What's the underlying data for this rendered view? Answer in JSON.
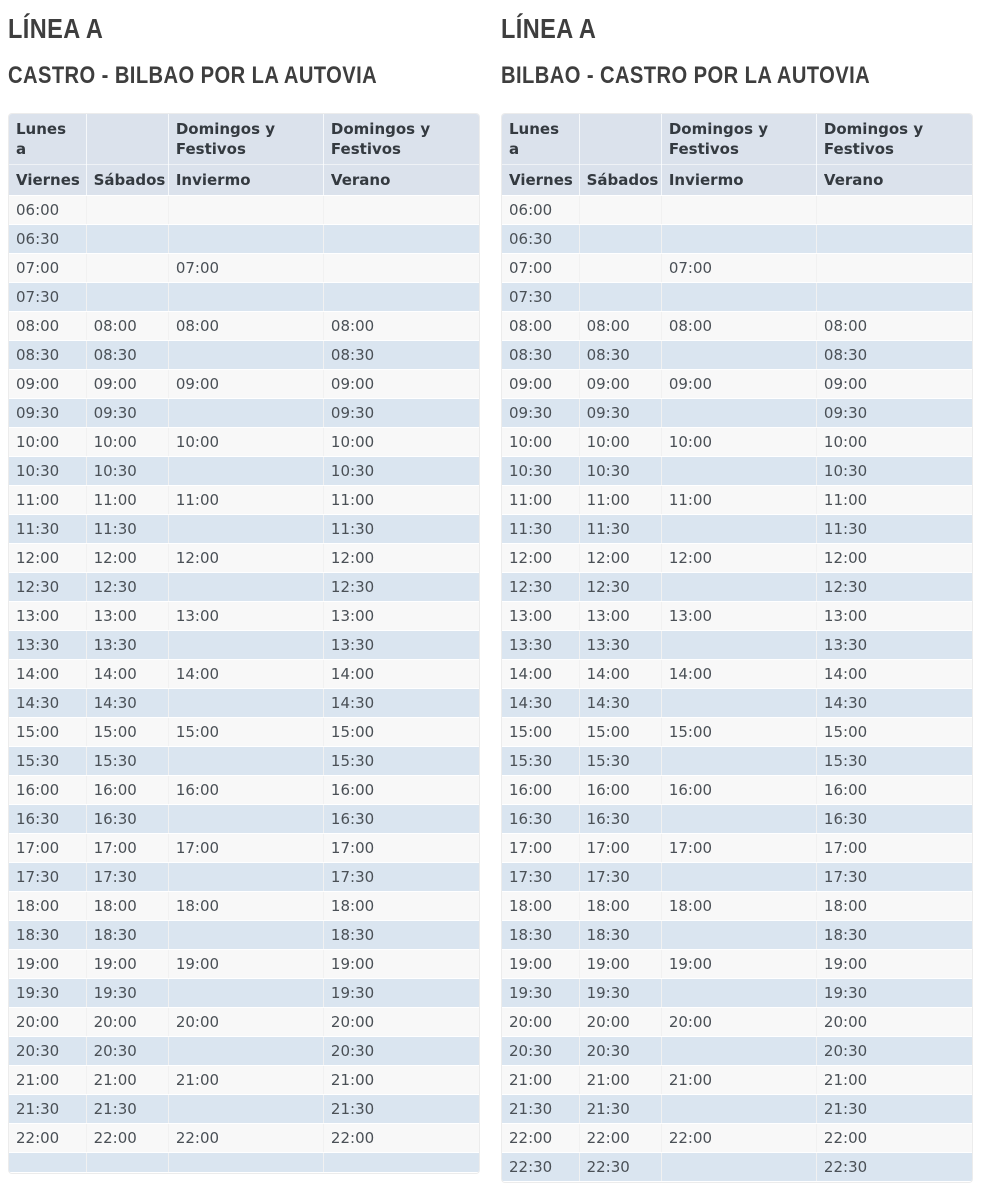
{
  "colors": {
    "header_bg": "#dbe2ec",
    "row_blue": "#dae5f0",
    "row_white": "#f8f8f8",
    "cell_text": "#4a5056",
    "header_text": "#343a40",
    "title_text": "#3e3e3e"
  },
  "tables": [
    {
      "line_title": "LÍNEA A",
      "route_title": "CASTRO - BILBAO POR LA AUTOVIA",
      "header": {
        "col1_top": "Lunes\na",
        "col1_bottom": "Viernes",
        "col2_top": "",
        "col2_bottom": "Sábados",
        "col3_top": "Domingos y\nFestivos",
        "col3_bottom": "Inviermo",
        "col4_top": "Domingos y\nFestivos",
        "col4_bottom": "Verano"
      },
      "rows": [
        [
          "06:00",
          "",
          "",
          ""
        ],
        [
          "06:30",
          "",
          "",
          ""
        ],
        [
          "07:00",
          "",
          "07:00",
          ""
        ],
        [
          "07:30",
          "",
          "",
          ""
        ],
        [
          "08:00",
          "08:00",
          "08:00",
          "08:00"
        ],
        [
          "08:30",
          "08:30",
          "",
          "08:30"
        ],
        [
          "09:00",
          "09:00",
          "09:00",
          "09:00"
        ],
        [
          "09:30",
          "09:30",
          "",
          "09:30"
        ],
        [
          "10:00",
          "10:00",
          "10:00",
          "10:00"
        ],
        [
          "10:30",
          "10:30",
          "",
          "10:30"
        ],
        [
          "11:00",
          "11:00",
          "11:00",
          "11:00"
        ],
        [
          "11:30",
          "11:30",
          "",
          "11:30"
        ],
        [
          "12:00",
          "12:00",
          "12:00",
          "12:00"
        ],
        [
          "12:30",
          "12:30",
          "",
          "12:30"
        ],
        [
          "13:00",
          "13:00",
          "13:00",
          "13:00"
        ],
        [
          "13:30",
          "13:30",
          "",
          "13:30"
        ],
        [
          "14:00",
          "14:00",
          "14:00",
          "14:00"
        ],
        [
          "14:30",
          "14:30",
          "",
          "14:30"
        ],
        [
          "15:00",
          "15:00",
          "15:00",
          "15:00"
        ],
        [
          "15:30",
          "15:30",
          "",
          "15:30"
        ],
        [
          "16:00",
          "16:00",
          "16:00",
          "16:00"
        ],
        [
          "16:30",
          "16:30",
          "",
          "16:30"
        ],
        [
          "17:00",
          "17:00",
          "17:00",
          "17:00"
        ],
        [
          "17:30",
          "17:30",
          "",
          "17:30"
        ],
        [
          "18:00",
          "18:00",
          "18:00",
          "18:00"
        ],
        [
          "18:30",
          "18:30",
          "",
          "18:30"
        ],
        [
          "19:00",
          "19:00",
          "19:00",
          "19:00"
        ],
        [
          "19:30",
          "19:30",
          "",
          "19:30"
        ],
        [
          "20:00",
          "20:00",
          "20:00",
          "20:00"
        ],
        [
          "20:30",
          "20:30",
          "",
          "20:30"
        ],
        [
          "21:00",
          "21:00",
          "21:00",
          "21:00"
        ],
        [
          "21:30",
          "21:30",
          "",
          "21:30"
        ],
        [
          "22:00",
          "22:00",
          "22:00",
          "22:00"
        ],
        [
          "",
          "",
          "",
          ""
        ]
      ]
    },
    {
      "line_title": "LÍNEA A",
      "route_title": "BILBAO - CASTRO POR LA AUTOVIA",
      "header": {
        "col1_top": "Lunes\na",
        "col1_bottom": "Viernes",
        "col2_top": "",
        "col2_bottom": "Sábados",
        "col3_top": "Domingos y\nFestivos",
        "col3_bottom": "Inviermo",
        "col4_top": "Domingos y\nFestivos",
        "col4_bottom": "Verano"
      },
      "rows": [
        [
          "06:00",
          "",
          "",
          ""
        ],
        [
          "06:30",
          "",
          "",
          ""
        ],
        [
          "07:00",
          "",
          "07:00",
          ""
        ],
        [
          "07:30",
          "",
          "",
          ""
        ],
        [
          "08:00",
          "08:00",
          "08:00",
          "08:00"
        ],
        [
          "08:30",
          "08:30",
          "",
          "08:30"
        ],
        [
          "09:00",
          "09:00",
          "09:00",
          "09:00"
        ],
        [
          "09:30",
          "09:30",
          "",
          "09:30"
        ],
        [
          "10:00",
          "10:00",
          "10:00",
          "10:00"
        ],
        [
          "10:30",
          "10:30",
          "",
          "10:30"
        ],
        [
          "11:00",
          "11:00",
          "11:00",
          "11:00"
        ],
        [
          "11:30",
          "11:30",
          "",
          "11:30"
        ],
        [
          "12:00",
          "12:00",
          "12:00",
          "12:00"
        ],
        [
          "12:30",
          "12:30",
          "",
          "12:30"
        ],
        [
          "13:00",
          "13:00",
          "13:00",
          "13:00"
        ],
        [
          "13:30",
          "13:30",
          "",
          "13:30"
        ],
        [
          "14:00",
          "14:00",
          "14:00",
          "14:00"
        ],
        [
          "14:30",
          "14:30",
          "",
          "14:30"
        ],
        [
          "15:00",
          "15:00",
          "15:00",
          "15:00"
        ],
        [
          "15:30",
          "15:30",
          "",
          "15:30"
        ],
        [
          "16:00",
          "16:00",
          "16:00",
          "16:00"
        ],
        [
          "16:30",
          "16:30",
          "",
          "16:30"
        ],
        [
          "17:00",
          "17:00",
          "17:00",
          "17:00"
        ],
        [
          "17:30",
          "17:30",
          "",
          "17:30"
        ],
        [
          "18:00",
          "18:00",
          "18:00",
          "18:00"
        ],
        [
          "18:30",
          "18:30",
          "",
          "18:30"
        ],
        [
          "19:00",
          "19:00",
          "19:00",
          "19:00"
        ],
        [
          "19:30",
          "19:30",
          "",
          "19:30"
        ],
        [
          "20:00",
          "20:00",
          "20:00",
          "20:00"
        ],
        [
          "20:30",
          "20:30",
          "",
          "20:30"
        ],
        [
          "21:00",
          "21:00",
          "21:00",
          "21:00"
        ],
        [
          "21:30",
          "21:30",
          "",
          "21:30"
        ],
        [
          "22:00",
          "22:00",
          "22:00",
          "22:00"
        ],
        [
          "22:30",
          "22:30",
          "",
          "22:30"
        ]
      ]
    }
  ]
}
